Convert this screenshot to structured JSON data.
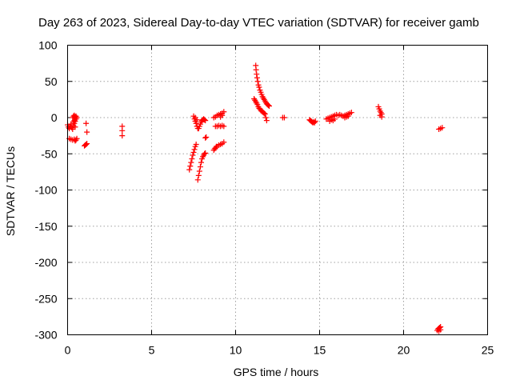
{
  "chart_data": {
    "type": "scatter",
    "title": "Day 263 of 2023, Sidereal Day-to-day VTEC variation (SDTVAR) for receiver gamb",
    "xlabel": "GPS time / hours",
    "ylabel": "SDTVAR / TECUs",
    "xlim": [
      0,
      25
    ],
    "ylim": [
      -300,
      100
    ],
    "xticks": [
      0,
      5,
      10,
      15,
      20,
      25
    ],
    "yticks": [
      100,
      50,
      0,
      -50,
      -100,
      -150,
      -200,
      -250,
      -300
    ],
    "xtick_labels": [
      "0",
      "5",
      "10",
      "15",
      "20",
      "25"
    ],
    "ytick_labels": [
      "100",
      "50",
      "0",
      "-50",
      "-100",
      "-150",
      "-200",
      "-250",
      "-300"
    ],
    "grid": true,
    "marker": "+",
    "color": "#ff0000",
    "series": [
      {
        "name": "SDTVAR",
        "points": [
          [
            0.0,
            -10
          ],
          [
            0.05,
            -13
          ],
          [
            0.1,
            -15
          ],
          [
            0.15,
            -12
          ],
          [
            0.2,
            -9
          ],
          [
            0.25,
            -14
          ],
          [
            0.3,
            -16
          ],
          [
            0.35,
            -11
          ],
          [
            0.4,
            -8
          ],
          [
            0.45,
            -13
          ],
          [
            0.1,
            -29
          ],
          [
            0.2,
            -30
          ],
          [
            0.3,
            -31
          ],
          [
            0.4,
            -30
          ],
          [
            0.5,
            -31
          ],
          [
            0.55,
            -29
          ],
          [
            0.45,
            -32
          ],
          [
            0.3,
            0
          ],
          [
            0.35,
            2
          ],
          [
            0.4,
            3
          ],
          [
            0.45,
            1
          ],
          [
            0.5,
            -2
          ],
          [
            0.55,
            0
          ],
          [
            0.5,
            2
          ],
          [
            0.4,
            -4
          ],
          [
            0.35,
            -6
          ],
          [
            0.45,
            -5
          ],
          [
            1.0,
            -39
          ],
          [
            1.05,
            -38
          ],
          [
            1.1,
            -37
          ],
          [
            1.15,
            -36
          ],
          [
            1.1,
            -8
          ],
          [
            1.15,
            -20
          ],
          [
            3.25,
            -12
          ],
          [
            3.25,
            -18
          ],
          [
            3.25,
            -25
          ],
          [
            7.25,
            -72
          ],
          [
            7.3,
            -67
          ],
          [
            7.35,
            -62
          ],
          [
            7.4,
            -57
          ],
          [
            7.45,
            -52
          ],
          [
            7.5,
            -48
          ],
          [
            7.55,
            -44
          ],
          [
            7.6,
            -40
          ],
          [
            7.65,
            -37
          ],
          [
            7.5,
            2
          ],
          [
            7.55,
            -2
          ],
          [
            7.6,
            -5
          ],
          [
            7.65,
            -8
          ],
          [
            7.7,
            -12
          ],
          [
            7.75,
            -15
          ],
          [
            7.7,
            -3
          ],
          [
            7.6,
            0
          ],
          [
            7.75,
            -86
          ],
          [
            7.8,
            -80
          ],
          [
            7.85,
            -74
          ],
          [
            7.9,
            -68
          ],
          [
            7.95,
            -62
          ],
          [
            8.0,
            -57
          ],
          [
            8.05,
            -54
          ],
          [
            8.1,
            -52
          ],
          [
            8.15,
            -50
          ],
          [
            8.2,
            -49
          ],
          [
            7.8,
            -15
          ],
          [
            7.85,
            -12
          ],
          [
            7.9,
            -9
          ],
          [
            7.95,
            -6
          ],
          [
            8.0,
            -4
          ],
          [
            8.05,
            -3
          ],
          [
            8.1,
            -2
          ],
          [
            8.15,
            -3
          ],
          [
            8.2,
            -4
          ],
          [
            8.2,
            -28
          ],
          [
            8.25,
            -27
          ],
          [
            8.7,
            0
          ],
          [
            8.8,
            1
          ],
          [
            8.9,
            3
          ],
          [
            9.0,
            4
          ],
          [
            9.1,
            5
          ],
          [
            9.2,
            6
          ],
          [
            9.3,
            8
          ],
          [
            9.2,
            3
          ],
          [
            9.1,
            1
          ],
          [
            8.8,
            -12
          ],
          [
            8.9,
            -12
          ],
          [
            9.0,
            -11
          ],
          [
            9.1,
            -12
          ],
          [
            9.2,
            -11
          ],
          [
            9.3,
            -12
          ],
          [
            8.7,
            -45
          ],
          [
            8.75,
            -43
          ],
          [
            8.8,
            -42
          ],
          [
            8.85,
            -40
          ],
          [
            8.9,
            -40
          ],
          [
            9.0,
            -38
          ],
          [
            9.1,
            -37
          ],
          [
            9.2,
            -36
          ],
          [
            9.3,
            -34
          ],
          [
            11.2,
            72
          ],
          [
            11.22,
            66
          ],
          [
            11.25,
            60
          ],
          [
            11.28,
            55
          ],
          [
            11.32,
            50
          ],
          [
            11.36,
            45
          ],
          [
            11.4,
            42
          ],
          [
            11.45,
            38
          ],
          [
            11.5,
            35
          ],
          [
            11.55,
            32
          ],
          [
            11.6,
            29
          ],
          [
            11.65,
            27
          ],
          [
            11.7,
            25
          ],
          [
            11.75,
            23
          ],
          [
            11.8,
            21
          ],
          [
            11.85,
            19
          ],
          [
            11.9,
            18
          ],
          [
            11.95,
            17
          ],
          [
            12.0,
            16
          ],
          [
            11.1,
            26
          ],
          [
            11.15,
            24
          ],
          [
            11.2,
            22
          ],
          [
            11.25,
            20
          ],
          [
            11.3,
            18
          ],
          [
            11.35,
            15
          ],
          [
            11.4,
            13
          ],
          [
            11.45,
            12
          ],
          [
            11.5,
            10
          ],
          [
            11.55,
            9
          ],
          [
            11.6,
            8
          ],
          [
            11.65,
            7
          ],
          [
            11.7,
            6
          ],
          [
            11.75,
            5
          ],
          [
            11.8,
            0
          ],
          [
            11.85,
            -4
          ],
          [
            12.8,
            0
          ],
          [
            12.9,
            0
          ],
          [
            14.4,
            -3
          ],
          [
            14.45,
            -4
          ],
          [
            14.5,
            -5
          ],
          [
            14.55,
            -6
          ],
          [
            14.6,
            -7
          ],
          [
            14.65,
            -6
          ],
          [
            14.7,
            -7
          ],
          [
            14.75,
            -5
          ],
          [
            15.4,
            -2
          ],
          [
            15.5,
            -1
          ],
          [
            15.6,
            0
          ],
          [
            15.7,
            1
          ],
          [
            15.8,
            2
          ],
          [
            15.9,
            3
          ],
          [
            16.0,
            4
          ],
          [
            16.1,
            3
          ],
          [
            16.2,
            4
          ],
          [
            16.3,
            3
          ],
          [
            15.6,
            -5
          ],
          [
            15.7,
            -3
          ],
          [
            15.8,
            -4
          ],
          [
            15.9,
            -2
          ],
          [
            16.4,
            2
          ],
          [
            16.5,
            3
          ],
          [
            16.6,
            4
          ],
          [
            16.7,
            5
          ],
          [
            16.8,
            6
          ],
          [
            16.9,
            7
          ],
          [
            16.5,
            0
          ],
          [
            16.6,
            1
          ],
          [
            16.7,
            2
          ],
          [
            18.5,
            15
          ],
          [
            18.55,
            12
          ],
          [
            18.6,
            9
          ],
          [
            18.65,
            7
          ],
          [
            18.7,
            5
          ],
          [
            18.6,
            3
          ],
          [
            18.7,
            1
          ],
          [
            22.1,
            -16
          ],
          [
            22.2,
            -15
          ],
          [
            22.3,
            -14
          ],
          [
            22.0,
            -294
          ],
          [
            22.05,
            -292
          ],
          [
            22.1,
            -291
          ],
          [
            22.15,
            -290
          ],
          [
            22.2,
            -289
          ],
          [
            22.1,
            -295
          ],
          [
            22.2,
            -293
          ]
        ]
      }
    ]
  }
}
